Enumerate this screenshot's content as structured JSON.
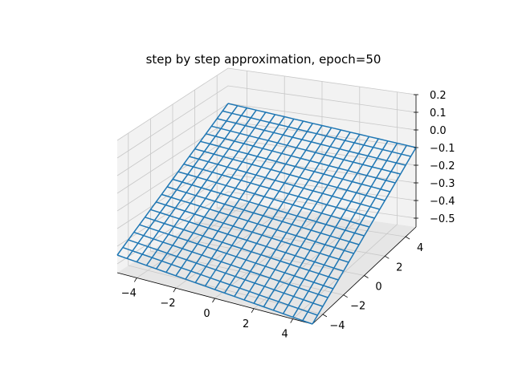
{
  "chart_data": {
    "type": "wireframe",
    "title": "step by step approximation, epoch=50",
    "xlabel": "",
    "ylabel": "",
    "zlabel": "",
    "x": [
      -5,
      5
    ],
    "y": [
      -5,
      5
    ],
    "x_ticks": [
      -4,
      -2,
      0,
      2,
      4
    ],
    "y_ticks": [
      -4,
      -2,
      0,
      2,
      4
    ],
    "z_ticks": [
      -0.5,
      -0.4,
      -0.3,
      -0.2,
      -0.1,
      0.0,
      0.1,
      0.2
    ],
    "x_tick_labels": [
      "−4",
      "−2",
      "0",
      "2",
      "4"
    ],
    "y_tick_labels": [
      "−4",
      "−2",
      "0",
      "2",
      "4"
    ],
    "z_tick_labels": [
      "−0.5",
      "−0.4",
      "−0.3",
      "−0.2",
      "−0.1",
      "0.0",
      "0.1",
      "0.2"
    ],
    "surface_corners": [
      {
        "x": -5,
        "y": -5,
        "z": -0.45
      },
      {
        "x": 5,
        "y": -5,
        "z": -0.55
      },
      {
        "x": 5,
        "y": 5,
        "z": -0.1
      },
      {
        "x": -5,
        "y": 5,
        "z": 0.0
      }
    ],
    "grid_divisions": 20,
    "grid": true,
    "line_color": "#1f77b4",
    "pane_colors": [
      "#f2f2f2",
      "#e6e6e6",
      "#ebebeb"
    ]
  }
}
